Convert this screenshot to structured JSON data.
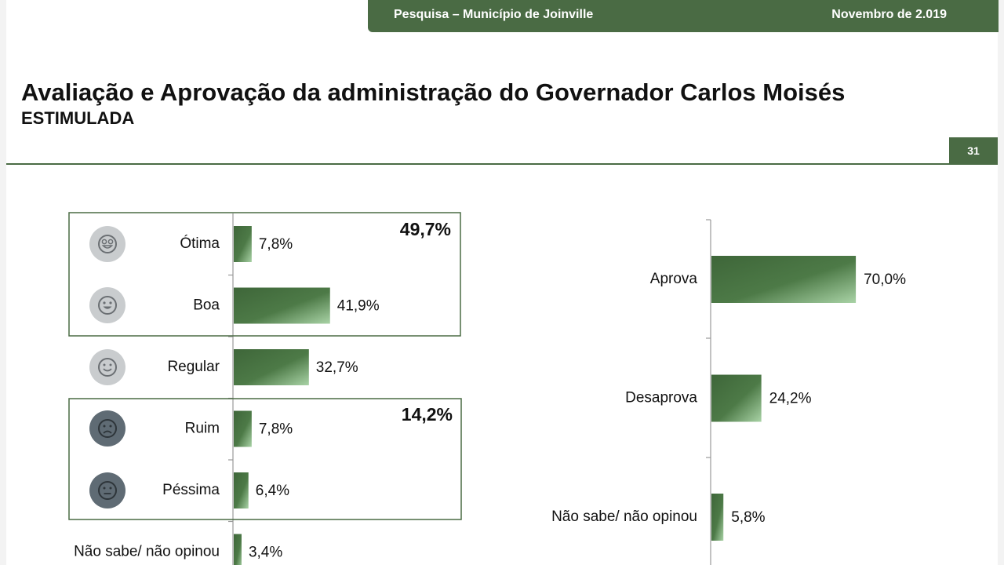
{
  "header": {
    "left": "Pesquisa – Município de Joinville",
    "right": "Novembro de 2.019"
  },
  "title": "Avaliação e Aprovação da administração do Governador Carlos Moisés",
  "subtitle": "ESTIMULADA",
  "page_number": "31",
  "colors": {
    "brand_green": "#4a6b44",
    "bar_dark": "#3e6639",
    "bar_light": "#a9d3a6",
    "icon_light_bg": "#c9ccce",
    "icon_dark_bg": "#5f6b74"
  },
  "icons": [
    "very-happy-face-icon",
    "happy-face-icon",
    "smile-face-icon",
    "sad-face-icon",
    "neutral-face-icon"
  ],
  "chart_data": [
    {
      "type": "bar",
      "orientation": "horizontal",
      "categories": [
        "Ótima",
        "Boa",
        "Regular",
        "Ruim",
        "Péssima",
        "Não sabe/ não opinou"
      ],
      "values": [
        7.8,
        41.9,
        32.7,
        7.8,
        6.4,
        3.4
      ],
      "value_labels": [
        "7,8%",
        "41,9%",
        "32,7%",
        "7,8%",
        "6,4%",
        "3,4%"
      ],
      "groups": [
        {
          "label": "49,7%",
          "categories": [
            "Ótima",
            "Boa"
          ]
        },
        {
          "label": "14,2%",
          "categories": [
            "Ruim",
            "Péssima"
          ]
        }
      ],
      "xlim": [
        0,
        100
      ]
    },
    {
      "type": "bar",
      "orientation": "horizontal",
      "categories": [
        "Aprova",
        "Desaprova",
        "Não sabe/ não opinou"
      ],
      "values": [
        70.0,
        24.2,
        5.8
      ],
      "value_labels": [
        "70,0%",
        "24,2%",
        "5,8%"
      ],
      "xlim": [
        0,
        100
      ]
    }
  ]
}
